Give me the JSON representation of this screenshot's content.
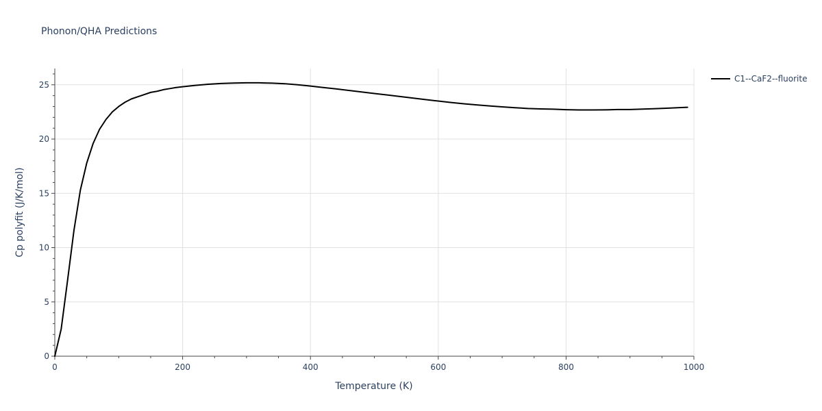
{
  "chart_data": {
    "type": "line",
    "title": "Phonon/QHA Predictions",
    "xlabel": "Temperature (K)",
    "ylabel": "Cp polyfit (J/K/mol)",
    "xlim": [
      0,
      1000
    ],
    "ylim": [
      0,
      26.5
    ],
    "x_ticks": [
      0,
      200,
      400,
      600,
      800,
      1000
    ],
    "y_ticks": [
      0,
      5,
      10,
      15,
      20,
      25
    ],
    "grid": true,
    "legend_position": "top-right outside",
    "series": [
      {
        "name": "C1--CaF2--fluorite",
        "color": "#000000",
        "points": [
          [
            0,
            0.0
          ],
          [
            10,
            2.5
          ],
          [
            20,
            7.0
          ],
          [
            30,
            11.6
          ],
          [
            40,
            15.3
          ],
          [
            50,
            17.8
          ],
          [
            60,
            19.6
          ],
          [
            70,
            20.9
          ],
          [
            80,
            21.8
          ],
          [
            90,
            22.5
          ],
          [
            100,
            23.0
          ],
          [
            110,
            23.4
          ],
          [
            120,
            23.7
          ],
          [
            130,
            23.9
          ],
          [
            140,
            24.1
          ],
          [
            150,
            24.3
          ],
          [
            160,
            24.4
          ],
          [
            170,
            24.55
          ],
          [
            180,
            24.65
          ],
          [
            190,
            24.75
          ],
          [
            200,
            24.82
          ],
          [
            220,
            24.95
          ],
          [
            240,
            25.05
          ],
          [
            260,
            25.12
          ],
          [
            280,
            25.16
          ],
          [
            300,
            25.18
          ],
          [
            320,
            25.18
          ],
          [
            340,
            25.15
          ],
          [
            360,
            25.1
          ],
          [
            380,
            25.0
          ],
          [
            400,
            24.88
          ],
          [
            420,
            24.75
          ],
          [
            440,
            24.62
          ],
          [
            460,
            24.48
          ],
          [
            480,
            24.34
          ],
          [
            500,
            24.2
          ],
          [
            520,
            24.06
          ],
          [
            540,
            23.92
          ],
          [
            560,
            23.78
          ],
          [
            580,
            23.64
          ],
          [
            600,
            23.5
          ],
          [
            620,
            23.37
          ],
          [
            640,
            23.25
          ],
          [
            660,
            23.15
          ],
          [
            680,
            23.05
          ],
          [
            700,
            22.97
          ],
          [
            720,
            22.89
          ],
          [
            740,
            22.82
          ],
          [
            760,
            22.78
          ],
          [
            780,
            22.75
          ],
          [
            800,
            22.71
          ],
          [
            820,
            22.68
          ],
          [
            840,
            22.68
          ],
          [
            860,
            22.69
          ],
          [
            880,
            22.72
          ],
          [
            900,
            22.72
          ],
          [
            920,
            22.76
          ],
          [
            940,
            22.8
          ],
          [
            960,
            22.85
          ],
          [
            980,
            22.9
          ],
          [
            990,
            22.93
          ]
        ]
      }
    ]
  }
}
